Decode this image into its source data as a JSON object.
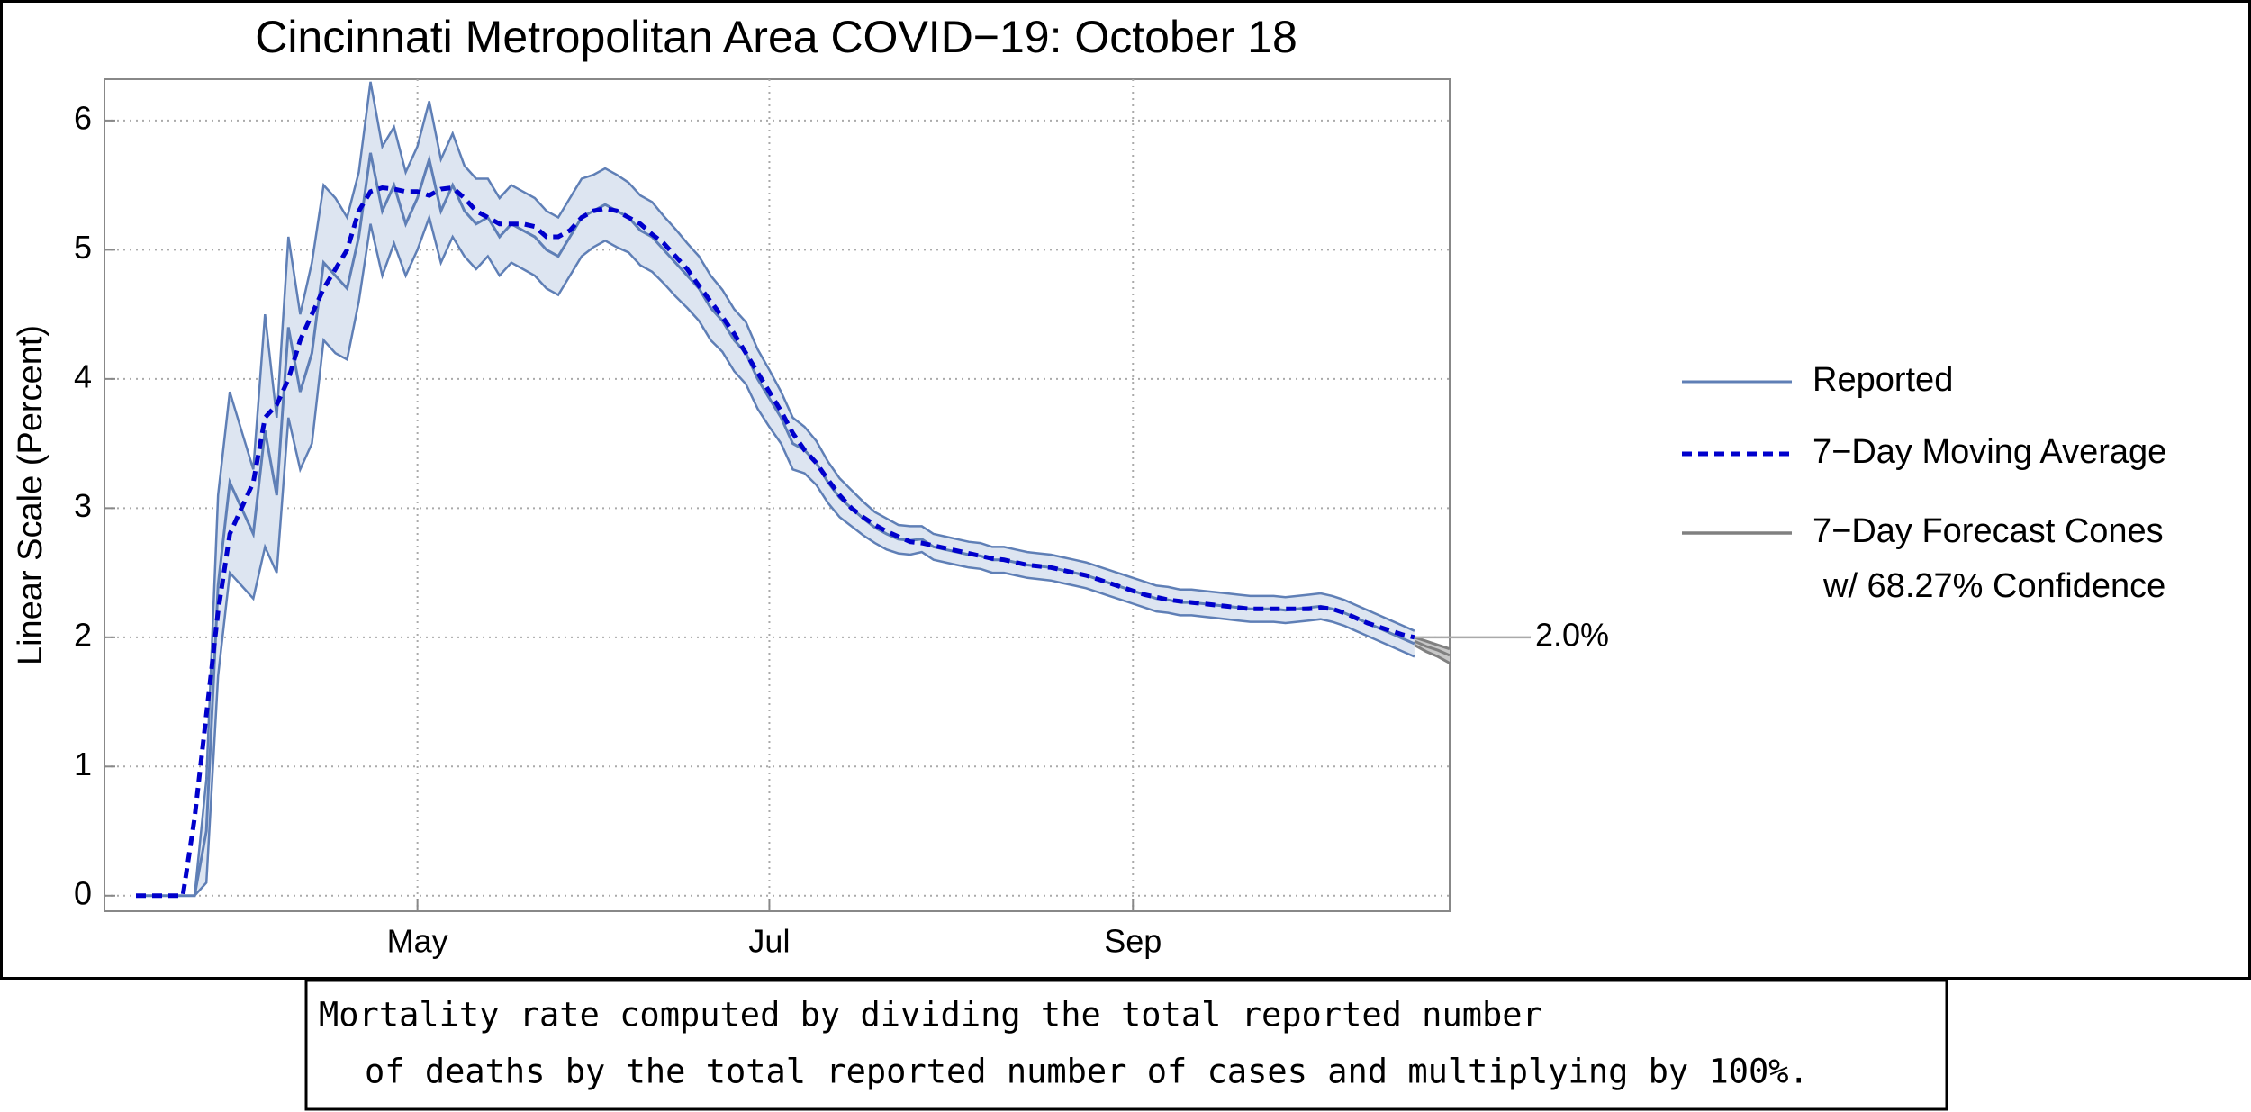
{
  "chart_data": {
    "type": "line",
    "title": "Cincinnati Metropolitan Area COVID−19: October 18",
    "y_label": "Linear Scale (Percent)",
    "ylim": [
      -0.12,
      6.32
    ],
    "yticks": [
      0,
      1,
      2,
      3,
      4,
      5,
      6
    ],
    "grid": true,
    "legend": "right",
    "categories": [
      null,
      null,
      null,
      null,
      null,
      null,
      null,
      null,
      null,
      null,
      null,
      null,
      null,
      null,
      null,
      null,
      null,
      null,
      null,
      null,
      null,
      null,
      null,
      null,
      "May",
      null,
      null,
      null,
      null,
      null,
      null,
      null,
      null,
      null,
      null,
      null,
      null,
      null,
      null,
      null,
      null,
      null,
      null,
      null,
      null,
      null,
      null,
      null,
      null,
      null,
      null,
      null,
      null,
      null,
      "Jul",
      null,
      null,
      null,
      null,
      null,
      null,
      null,
      null,
      null,
      null,
      null,
      null,
      null,
      null,
      null,
      null,
      null,
      null,
      null,
      null,
      null,
      null,
      null,
      null,
      null,
      null,
      null,
      null,
      null,
      null,
      "Sep",
      null,
      null,
      null,
      null,
      null,
      null,
      null,
      null,
      null,
      null,
      null,
      null,
      null,
      null,
      null,
      null,
      null,
      null,
      null,
      null,
      null,
      null,
      null,
      null,
      null,
      null,
      null
    ],
    "series": [
      {
        "name": "Reported",
        "color": "#5f7fb6",
        "dashed": false,
        "values": [
          0,
          0,
          0,
          0,
          0,
          0,
          0.5,
          2.4,
          3.2,
          3.0,
          2.8,
          3.6,
          3.1,
          4.4,
          3.9,
          4.2,
          4.9,
          4.8,
          4.7,
          5.1,
          5.75,
          5.3,
          5.5,
          5.2,
          5.4,
          5.7,
          5.3,
          5.5,
          5.3,
          5.2,
          5.25,
          5.1,
          5.2,
          5.15,
          5.1,
          5.0,
          4.95,
          5.1,
          5.25,
          5.3,
          5.35,
          5.3,
          5.25,
          5.15,
          5.1,
          5.0,
          4.9,
          4.8,
          4.7,
          4.55,
          4.45,
          4.3,
          4.2,
          4.0,
          3.85,
          3.7,
          3.5,
          3.45,
          3.35,
          3.2,
          3.08,
          3.0,
          2.92,
          2.85,
          2.8,
          2.76,
          2.75,
          2.76,
          2.7,
          2.68,
          2.66,
          2.64,
          2.63,
          2.6,
          2.6,
          2.58,
          2.56,
          2.55,
          2.54,
          2.52,
          2.5,
          2.48,
          2.45,
          2.42,
          2.39,
          2.36,
          2.33,
          2.3,
          2.29,
          2.27,
          2.27,
          2.26,
          2.25,
          2.24,
          2.23,
          2.22,
          2.22,
          2.22,
          2.21,
          2.22,
          2.23,
          2.24,
          2.22,
          2.19,
          2.15,
          2.11,
          2.07,
          2.03,
          1.99,
          1.95,
          null,
          null,
          null
        ]
      },
      {
        "name": "7−Day Moving Average",
        "color": "#0000cc",
        "dashed": true,
        "values": [
          0,
          0,
          0,
          0,
          0,
          0.6,
          1.4,
          2.2,
          2.8,
          3.0,
          3.2,
          3.7,
          3.8,
          4.0,
          4.3,
          4.5,
          4.7,
          4.85,
          5.0,
          5.3,
          5.45,
          5.48,
          5.47,
          5.45,
          5.45,
          5.42,
          5.47,
          5.48,
          5.4,
          5.3,
          5.25,
          5.2,
          5.2,
          5.2,
          5.18,
          5.1,
          5.1,
          5.15,
          5.25,
          5.3,
          5.32,
          5.3,
          5.25,
          5.2,
          5.12,
          5.05,
          4.95,
          4.85,
          4.72,
          4.6,
          4.48,
          4.35,
          4.2,
          4.05,
          3.9,
          3.75,
          3.58,
          3.45,
          3.35,
          3.22,
          3.1,
          3.0,
          2.93,
          2.87,
          2.82,
          2.78,
          2.74,
          2.73,
          2.71,
          2.69,
          2.67,
          2.65,
          2.63,
          2.61,
          2.6,
          2.58,
          2.56,
          2.55,
          2.54,
          2.52,
          2.5,
          2.48,
          2.45,
          2.42,
          2.39,
          2.36,
          2.33,
          2.31,
          2.29,
          2.28,
          2.27,
          2.26,
          2.25,
          2.24,
          2.23,
          2.22,
          2.22,
          2.22,
          2.22,
          2.22,
          2.22,
          2.23,
          2.22,
          2.19,
          2.15,
          2.11,
          2.08,
          2.05,
          2.02,
          2.0,
          null,
          null,
          null
        ],
        "value_labels": [
          null,
          null,
          null,
          null,
          null,
          null,
          null,
          null,
          null,
          null,
          null,
          null,
          null,
          null,
          null,
          null,
          null,
          null,
          null,
          null,
          null,
          null,
          null,
          null,
          null,
          null,
          null,
          null,
          null,
          null,
          null,
          null,
          null,
          null,
          null,
          null,
          null,
          null,
          null,
          null,
          null,
          null,
          null,
          null,
          null,
          null,
          null,
          null,
          null,
          null,
          null,
          null,
          null,
          null,
          null,
          null,
          null,
          null,
          null,
          null,
          null,
          null,
          null,
          null,
          null,
          null,
          null,
          null,
          null,
          null,
          null,
          null,
          null,
          null,
          null,
          null,
          null,
          null,
          null,
          null,
          null,
          null,
          null,
          null,
          null,
          null,
          null,
          null,
          null,
          null,
          null,
          null,
          null,
          null,
          null,
          null,
          null,
          null,
          null,
          null,
          null,
          null,
          null,
          null,
          null,
          null,
          null,
          null,
          null,
          "2.0%",
          null,
          null,
          null
        ],
        "label_color": "#1a1aa6"
      }
    ],
    "band": {
      "color": "#dde5f1",
      "line_color": "#5f7fb6",
      "lower": [
        0,
        0,
        0,
        0,
        0,
        0,
        0.1,
        1.7,
        2.5,
        2.4,
        2.3,
        2.7,
        2.5,
        3.7,
        3.3,
        3.5,
        4.3,
        4.2,
        4.15,
        4.6,
        5.2,
        4.8,
        5.05,
        4.8,
        5.0,
        5.25,
        4.9,
        5.1,
        4.95,
        4.85,
        4.95,
        4.8,
        4.9,
        4.85,
        4.8,
        4.7,
        4.65,
        4.8,
        4.95,
        5.02,
        5.07,
        5.02,
        4.98,
        4.88,
        4.83,
        4.74,
        4.64,
        4.55,
        4.45,
        4.3,
        4.21,
        4.06,
        3.96,
        3.77,
        3.63,
        3.5,
        3.3,
        3.27,
        3.18,
        3.04,
        2.93,
        2.86,
        2.79,
        2.73,
        2.68,
        2.65,
        2.64,
        2.66,
        2.6,
        2.58,
        2.56,
        2.54,
        2.53,
        2.5,
        2.5,
        2.48,
        2.46,
        2.45,
        2.44,
        2.42,
        2.4,
        2.38,
        2.35,
        2.32,
        2.29,
        2.26,
        2.23,
        2.2,
        2.19,
        2.17,
        2.17,
        2.16,
        2.15,
        2.14,
        2.13,
        2.12,
        2.12,
        2.12,
        2.11,
        2.12,
        2.13,
        2.14,
        2.12,
        2.09,
        2.05,
        2.01,
        1.97,
        1.93,
        1.89,
        1.85,
        null,
        null,
        null
      ],
      "upper": [
        0,
        0,
        0,
        0,
        0,
        0,
        0.9,
        3.1,
        3.9,
        3.6,
        3.3,
        4.5,
        3.7,
        5.1,
        4.5,
        4.9,
        5.5,
        5.4,
        5.25,
        5.6,
        6.3,
        5.8,
        5.95,
        5.6,
        5.8,
        6.15,
        5.7,
        5.9,
        5.65,
        5.55,
        5.55,
        5.4,
        5.5,
        5.45,
        5.4,
        5.3,
        5.25,
        5.4,
        5.55,
        5.58,
        5.63,
        5.58,
        5.52,
        5.42,
        5.37,
        5.26,
        5.16,
        5.05,
        4.95,
        4.8,
        4.69,
        4.54,
        4.44,
        4.23,
        4.07,
        3.9,
        3.7,
        3.63,
        3.52,
        3.36,
        3.23,
        3.14,
        3.05,
        2.97,
        2.92,
        2.87,
        2.86,
        2.86,
        2.8,
        2.78,
        2.76,
        2.74,
        2.73,
        2.7,
        2.7,
        2.68,
        2.66,
        2.65,
        2.64,
        2.62,
        2.6,
        2.58,
        2.55,
        2.52,
        2.49,
        2.46,
        2.43,
        2.4,
        2.39,
        2.37,
        2.37,
        2.36,
        2.35,
        2.34,
        2.33,
        2.32,
        2.32,
        2.32,
        2.31,
        2.32,
        2.33,
        2.34,
        2.32,
        2.29,
        2.25,
        2.21,
        2.17,
        2.13,
        2.09,
        2.05,
        null,
        null,
        null
      ]
    },
    "forecast": {
      "name": [
        "7−Day Forecast Cones",
        "w/ 68.27% Confidence"
      ],
      "color": "#808080",
      "fill": "#c8c8c8",
      "values": [
        null,
        null,
        null,
        null,
        null,
        null,
        null,
        null,
        null,
        null,
        null,
        null,
        null,
        null,
        null,
        null,
        null,
        null,
        null,
        null,
        null,
        null,
        null,
        null,
        null,
        null,
        null,
        null,
        null,
        null,
        null,
        null,
        null,
        null,
        null,
        null,
        null,
        null,
        null,
        null,
        null,
        null,
        null,
        null,
        null,
        null,
        null,
        null,
        null,
        null,
        null,
        null,
        null,
        null,
        null,
        null,
        null,
        null,
        null,
        null,
        null,
        null,
        null,
        null,
        null,
        null,
        null,
        null,
        null,
        null,
        null,
        null,
        null,
        null,
        null,
        null,
        null,
        null,
        null,
        null,
        null,
        null,
        null,
        null,
        null,
        null,
        null,
        null,
        null,
        null,
        null,
        null,
        null,
        null,
        null,
        null,
        null,
        null,
        null,
        null,
        null,
        null,
        null,
        null,
        null,
        null,
        null,
        null,
        null,
        1.97,
        1.93,
        1.9,
        1.86
      ],
      "lower": [
        null,
        null,
        null,
        null,
        null,
        null,
        null,
        null,
        null,
        null,
        null,
        null,
        null,
        null,
        null,
        null,
        null,
        null,
        null,
        null,
        null,
        null,
        null,
        null,
        null,
        null,
        null,
        null,
        null,
        null,
        null,
        null,
        null,
        null,
        null,
        null,
        null,
        null,
        null,
        null,
        null,
        null,
        null,
        null,
        null,
        null,
        null,
        null,
        null,
        null,
        null,
        null,
        null,
        null,
        null,
        null,
        null,
        null,
        null,
        null,
        null,
        null,
        null,
        null,
        null,
        null,
        null,
        null,
        null,
        null,
        null,
        null,
        null,
        null,
        null,
        null,
        null,
        null,
        null,
        null,
        null,
        null,
        null,
        null,
        null,
        null,
        null,
        null,
        null,
        null,
        null,
        null,
        null,
        null,
        null,
        null,
        null,
        null,
        null,
        null,
        null,
        null,
        null,
        null,
        null,
        null,
        null,
        null,
        null,
        1.94,
        1.89,
        1.85,
        1.8
      ],
      "upper": [
        null,
        null,
        null,
        null,
        null,
        null,
        null,
        null,
        null,
        null,
        null,
        null,
        null,
        null,
        null,
        null,
        null,
        null,
        null,
        null,
        null,
        null,
        null,
        null,
        null,
        null,
        null,
        null,
        null,
        null,
        null,
        null,
        null,
        null,
        null,
        null,
        null,
        null,
        null,
        null,
        null,
        null,
        null,
        null,
        null,
        null,
        null,
        null,
        null,
        null,
        null,
        null,
        null,
        null,
        null,
        null,
        null,
        null,
        null,
        null,
        null,
        null,
        null,
        null,
        null,
        null,
        null,
        null,
        null,
        null,
        null,
        null,
        null,
        null,
        null,
        null,
        null,
        null,
        null,
        null,
        null,
        null,
        null,
        null,
        null,
        null,
        null,
        null,
        null,
        null,
        null,
        null,
        null,
        null,
        null,
        null,
        null,
        null,
        null,
        null,
        null,
        null,
        null,
        null,
        null,
        null,
        null,
        null,
        null,
        2.0,
        1.97,
        1.94,
        1.91
      ]
    },
    "note": [
      "Mortality rate computed by dividing the total reported number",
      "of deaths by the total reported number of cases and multiplying by 100%."
    ]
  }
}
